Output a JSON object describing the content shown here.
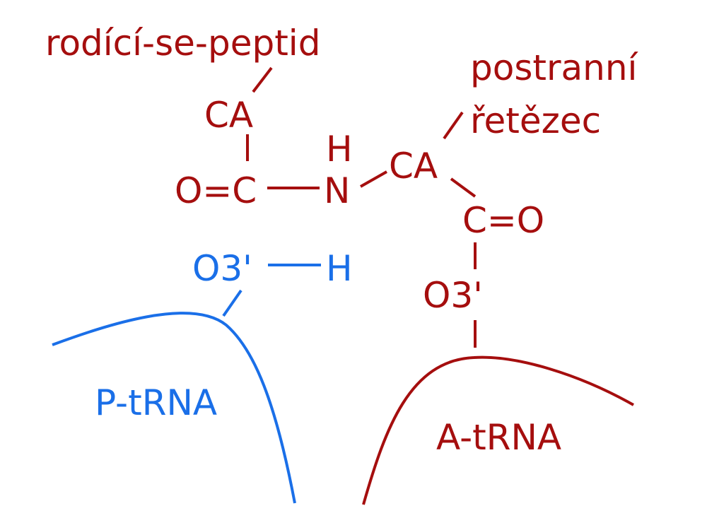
{
  "colors": {
    "a_site": "#a50e0e",
    "p_site": "#1a6fe8"
  },
  "labels": {
    "nascent_peptide": "rodící-se-peptid",
    "side_chain_line1": "postranní",
    "side_chain_line2": "řetězec",
    "ca_upper": "CA",
    "carbonyl_left": "O=C",
    "amide_h": "H",
    "amide_n": "N",
    "ca_right": "CA",
    "carbonyl_right": "C=O",
    "o3_a": "O3'",
    "o3_p": "O3'",
    "h_p": "H",
    "p_trna": "P-tRNA",
    "a_trna": "A-tRNA"
  }
}
